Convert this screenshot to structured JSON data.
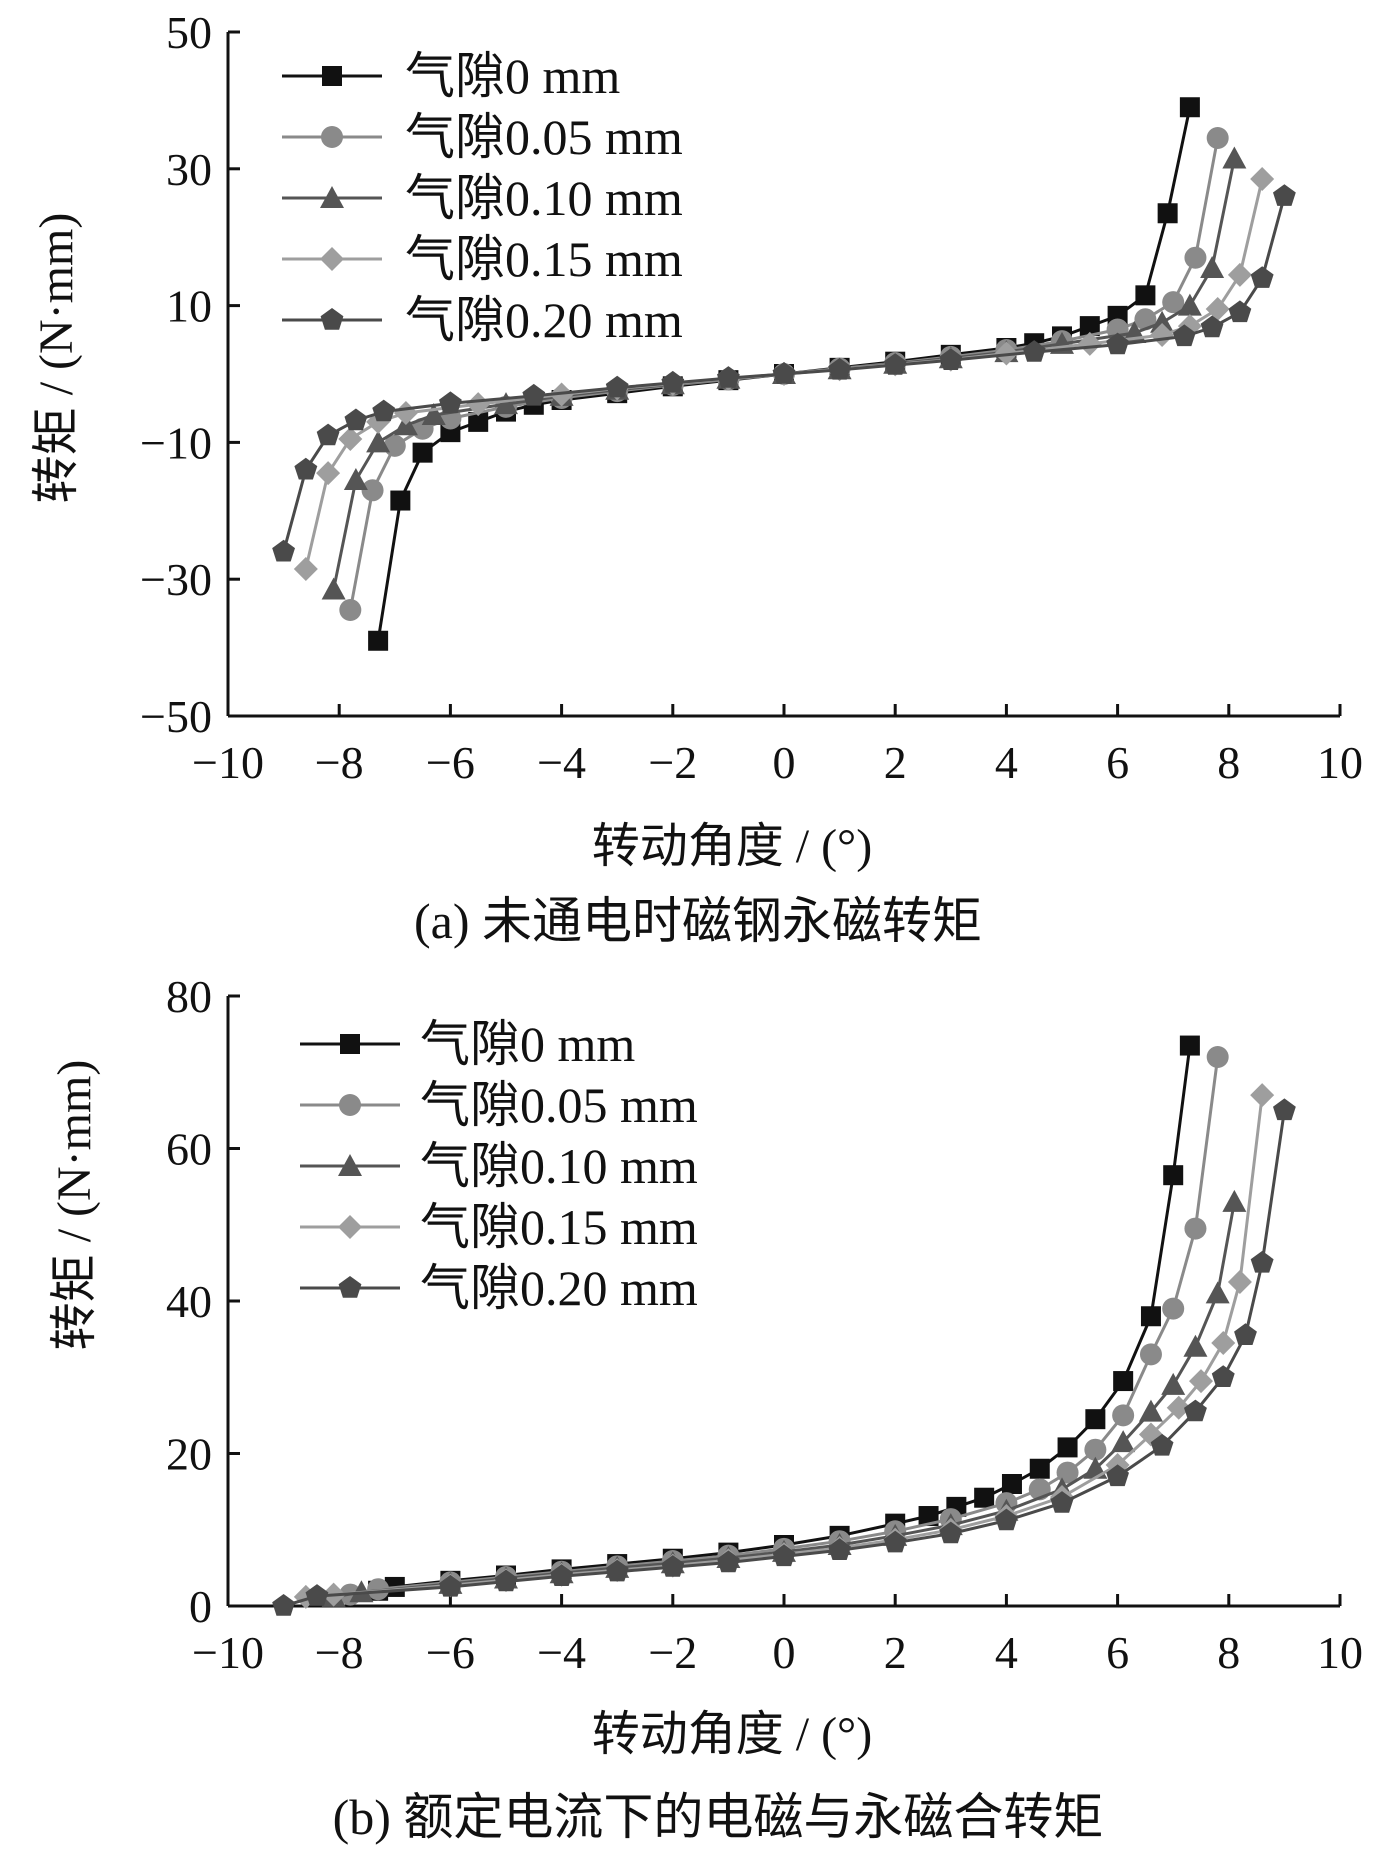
{
  "series_styles": [
    {
      "stroke": "#111111",
      "fill": "#111111",
      "marker": "square"
    },
    {
      "stroke": "#8a8a8a",
      "fill": "#8a8a8a",
      "marker": "circle"
    },
    {
      "stroke": "#555555",
      "fill": "#555555",
      "marker": "triangle"
    },
    {
      "stroke": "#9e9e9e",
      "fill": "#9e9e9e",
      "marker": "diamond"
    },
    {
      "stroke": "#4a4a4a",
      "fill": "#4a4a4a",
      "marker": "pentagon"
    }
  ],
  "chart_data": [
    {
      "type": "line",
      "caption": "(a) 未通电时磁钢永磁转矩",
      "xlabel": "转动角度 / (°)",
      "ylabel": "转矩 / (N·mm)",
      "xlim": [
        -10,
        10
      ],
      "ylim": [
        -50,
        50
      ],
      "xticks": [
        -10,
        -8,
        -6,
        -4,
        -2,
        0,
        2,
        4,
        6,
        8,
        10
      ],
      "yticks": [
        -50,
        -30,
        -10,
        10,
        30,
        50
      ],
      "legend_position": "top-left",
      "series": [
        {
          "name": "气隙0 mm",
          "x": [
            -7.3,
            -6.9,
            -6.5,
            -6.0,
            -5.5,
            -5.0,
            -4.5,
            -4.0,
            -3.0,
            -2.0,
            -1.0,
            0,
            1.0,
            2.0,
            3.0,
            4.0,
            4.5,
            5.0,
            5.5,
            6.0,
            6.5,
            6.9,
            7.3
          ],
          "y": [
            -39,
            -18.5,
            -11.5,
            -8.5,
            -7,
            -5.5,
            -4.5,
            -3.8,
            -2.8,
            -1.8,
            -0.9,
            0,
            0.9,
            1.8,
            2.8,
            3.8,
            4.5,
            5.5,
            7,
            8.5,
            11.5,
            23.5,
            39
          ]
        },
        {
          "name": "气隙0.05 mm",
          "x": [
            -7.8,
            -7.4,
            -7.0,
            -6.5,
            -6.0,
            -5.0,
            -4.0,
            -3.0,
            -2.0,
            -1.0,
            0,
            1.0,
            2.0,
            3.0,
            4.0,
            5.0,
            6.0,
            6.5,
            7.0,
            7.4,
            7.8
          ],
          "y": [
            -34.5,
            -17,
            -10.5,
            -8,
            -6.5,
            -4.8,
            -3.5,
            -2.5,
            -1.6,
            -0.8,
            0,
            0.8,
            1.6,
            2.5,
            3.5,
            4.8,
            6.5,
            8,
            10.5,
            17,
            34.5
          ]
        },
        {
          "name": "气隙0.10 mm",
          "x": [
            -8.1,
            -7.7,
            -7.3,
            -6.8,
            -6.3,
            -5.0,
            -4.0,
            -3.0,
            -2.0,
            -1.0,
            0,
            1.0,
            2.0,
            3.0,
            4.0,
            5.0,
            6.3,
            6.8,
            7.3,
            7.7,
            8.1
          ],
          "y": [
            -31.5,
            -15.5,
            -10,
            -7.5,
            -6,
            -4.4,
            -3.2,
            -2.3,
            -1.5,
            -0.7,
            0,
            0.7,
            1.5,
            2.3,
            3.2,
            4.4,
            6,
            7.5,
            10,
            15.5,
            31.5
          ]
        },
        {
          "name": "气隙0.15 mm",
          "x": [
            -8.6,
            -8.2,
            -7.8,
            -7.3,
            -6.8,
            -5.5,
            -4.0,
            -3.0,
            -2.0,
            -1.0,
            0,
            1.0,
            2.0,
            3.0,
            4.0,
            5.5,
            6.8,
            7.3,
            7.8,
            8.2,
            8.6
          ],
          "y": [
            -28.5,
            -14.5,
            -9.5,
            -7,
            -5.7,
            -4.4,
            -3,
            -2.1,
            -1.4,
            -0.7,
            0,
            0.7,
            1.4,
            2.1,
            3,
            4.4,
            5.7,
            7,
            9.5,
            14.5,
            28.5
          ]
        },
        {
          "name": "气隙0.20 mm",
          "x": [
            -9.0,
            -8.6,
            -8.2,
            -7.7,
            -7.2,
            -6.0,
            -4.5,
            -3.0,
            -2.0,
            -1.0,
            0,
            1.0,
            2.0,
            3.0,
            4.5,
            6.0,
            7.2,
            7.7,
            8.2,
            8.6,
            9.0
          ],
          "y": [
            -26,
            -14,
            -9,
            -6.8,
            -5.5,
            -4.3,
            -3.2,
            -2,
            -1.3,
            -0.6,
            0,
            0.6,
            1.3,
            2,
            3.2,
            4.3,
            5.5,
            6.8,
            9,
            14,
            26
          ]
        }
      ]
    },
    {
      "type": "line",
      "caption": "(b) 额定电流下的电磁与永磁合转矩",
      "xlabel": "转动角度 / (°)",
      "ylabel": "转矩 / (N·mm)",
      "xlim": [
        -10,
        10
      ],
      "ylim": [
        0,
        80
      ],
      "xticks": [
        -10,
        -8,
        -6,
        -4,
        -2,
        0,
        2,
        4,
        6,
        8,
        10
      ],
      "yticks": [
        0,
        20,
        40,
        60,
        80
      ],
      "legend_position": "top-left",
      "series": [
        {
          "name": "气隙0 mm",
          "x": [
            -7.3,
            -7.0,
            -6.0,
            -5.0,
            -4.0,
            -3.0,
            -2.0,
            -1.0,
            0,
            1.0,
            2.0,
            2.6,
            3.1,
            3.6,
            4.1,
            4.6,
            5.1,
            5.6,
            6.1,
            6.6,
            7.0,
            7.3
          ],
          "y": [
            2,
            2.5,
            3.3,
            4,
            4.8,
            5.5,
            6.2,
            7,
            8,
            9.2,
            10.8,
            11.8,
            13,
            14.2,
            16,
            18,
            20.8,
            24.5,
            29.5,
            38,
            56.5,
            73.5
          ]
        },
        {
          "name": "气隙0.05 mm",
          "x": [
            -7.8,
            -7.3,
            -6.0,
            -5.0,
            -4.0,
            -3.0,
            -2.0,
            -1.0,
            0,
            1.0,
            2.0,
            3.0,
            4.0,
            4.6,
            5.1,
            5.6,
            6.1,
            6.6,
            7.0,
            7.4,
            7.8
          ],
          "y": [
            1.5,
            2.2,
            3.1,
            3.8,
            4.5,
            5.2,
            5.9,
            6.6,
            7.5,
            8.5,
            9.8,
            11.4,
            13.5,
            15.3,
            17.5,
            20.5,
            25,
            33,
            39,
            49.5,
            72
          ]
        },
        {
          "name": "气隙0.10 mm",
          "x": [
            -8.1,
            -7.6,
            -6.0,
            -5.0,
            -4.0,
            -3.0,
            -2.0,
            -1.0,
            0,
            1.0,
            2.0,
            3.0,
            4.0,
            5.0,
            5.6,
            6.1,
            6.6,
            7.0,
            7.4,
            7.8,
            8.1
          ],
          "y": [
            1.2,
            1.8,
            2.9,
            3.6,
            4.3,
            5,
            5.6,
            6.3,
            7.1,
            8,
            9.2,
            10.6,
            12.5,
            15.3,
            18,
            21.5,
            25.5,
            29,
            34,
            41,
            53
          ]
        },
        {
          "name": "气隙0.15 mm",
          "x": [
            -8.6,
            -8.1,
            -6.0,
            -5.0,
            -4.0,
            -3.0,
            -2.0,
            -1.0,
            0,
            1.0,
            2.0,
            3.0,
            4.0,
            5.0,
            6.0,
            6.6,
            7.1,
            7.5,
            7.9,
            8.2,
            8.6
          ],
          "y": [
            1.2,
            1.5,
            2.7,
            3.4,
            4.1,
            4.7,
            5.3,
            6,
            6.8,
            7.6,
            8.7,
            10,
            11.8,
            14.3,
            18.5,
            22.5,
            26,
            29.5,
            34.5,
            42.5,
            67
          ]
        },
        {
          "name": "气隙0.20 mm",
          "x": [
            -9.0,
            -8.4,
            -6.0,
            -5.0,
            -4.0,
            -3.0,
            -2.0,
            -1.0,
            0,
            1.0,
            2.0,
            3.0,
            4.0,
            5.0,
            6.0,
            6.8,
            7.4,
            7.9,
            8.3,
            8.6,
            9.0
          ],
          "y": [
            0,
            1.3,
            2.5,
            3.2,
            3.9,
            4.5,
            5.1,
            5.7,
            6.5,
            7.3,
            8.3,
            9.5,
            11.2,
            13.5,
            17,
            21,
            25.5,
            30,
            35.5,
            45,
            65
          ]
        }
      ]
    }
  ]
}
